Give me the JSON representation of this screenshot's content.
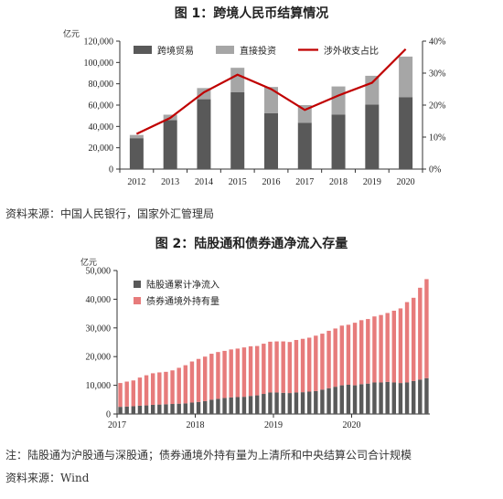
{
  "charts": {
    "fig1": {
      "title": "图 1：跨境人民币结算情况",
      "unit_label": "亿元",
      "source": "资料来源：中国人民银行，国家外汇管理局"
    },
    "fig2": {
      "title": "图 2：陆股通和债券通净流入存量",
      "unit_label": "亿元",
      "note": "注：陆股通为沪股通与深股通；债券通境外持有量为上清所和中央结算公司合计规模",
      "source": "资料来源：Wind"
    }
  },
  "colors": {
    "dark": "#595959",
    "light": "#a6a6a6",
    "red": "#c00000",
    "pink": "#e77b7b"
  },
  "chart_data": [
    {
      "type": "bar",
      "stacked": true,
      "categories": [
        "2012",
        "2013",
        "2014",
        "2015",
        "2016",
        "2017",
        "2018",
        "2019",
        "2020"
      ],
      "series": [
        {
          "name": "跨境贸易",
          "kind": "bar",
          "axis": "left",
          "values": [
            29000,
            46000,
            65500,
            72000,
            52500,
            43500,
            51000,
            60500,
            67500
          ]
        },
        {
          "name": "直接投资",
          "kind": "bar",
          "axis": "left",
          "values": [
            3000,
            5000,
            10500,
            23000,
            24500,
            16500,
            26500,
            27000,
            38000
          ]
        },
        {
          "name": "涉外收支占比",
          "kind": "line",
          "axis": "right",
          "values": [
            11,
            16,
            24,
            29.5,
            25,
            18.5,
            23,
            27,
            37.5
          ]
        }
      ],
      "ylim": [
        0,
        120000
      ],
      "yticks": [
        "0",
        "20,000",
        "40,000",
        "60,000",
        "80,000",
        "100,000",
        "120,000"
      ],
      "y2lim": [
        0,
        40
      ],
      "y2ticks": [
        "0%",
        "10%",
        "20%",
        "30%",
        "40%"
      ],
      "legend": "top",
      "grid": false
    },
    {
      "type": "bar",
      "stacked": true,
      "x_labels": [
        "2017",
        "2018",
        "2019",
        "2020"
      ],
      "series": [
        {
          "name": "陆股通累计净流入",
          "values": [
            2500,
            2600,
            2700,
            2900,
            3000,
            3200,
            3300,
            3400,
            3500,
            3600,
            3700,
            4000,
            4200,
            4500,
            5000,
            5300,
            5600,
            5800,
            5900,
            6000,
            6300,
            6500,
            7000,
            7500,
            7500,
            7400,
            7300,
            7500,
            7600,
            7800,
            8000,
            8500,
            9000,
            9500,
            10000,
            10200,
            10000,
            10400,
            10600,
            11000,
            11000,
            11200,
            11000,
            10800,
            11000,
            11500,
            12000,
            12500
          ]
        },
        {
          "name": "债券通境外持有量",
          "values": [
            8300,
            8700,
            9000,
            9800,
            10500,
            11000,
            11200,
            11300,
            11700,
            12500,
            13300,
            14300,
            15000,
            15500,
            16000,
            16300,
            16400,
            16700,
            16900,
            17200,
            17300,
            17200,
            17500,
            17700,
            17800,
            17900,
            17800,
            18300,
            18600,
            18800,
            19300,
            19500,
            20000,
            20300,
            20800,
            20900,
            21800,
            22300,
            22500,
            23000,
            23500,
            24000,
            25000,
            26000,
            28000,
            29000,
            32000,
            34500
          ]
        }
      ],
      "ylim": [
        0,
        50000
      ],
      "yticks": [
        "0",
        "10,000",
        "20,000",
        "30,000",
        "40,000",
        "50,000"
      ],
      "legend": "top-left",
      "grid": false
    }
  ]
}
